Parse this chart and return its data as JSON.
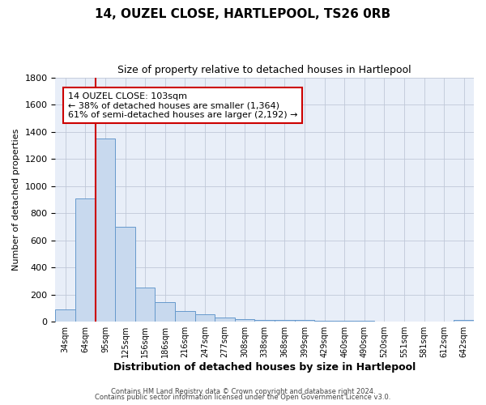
{
  "title": "14, OUZEL CLOSE, HARTLEPOOL, TS26 0RB",
  "subtitle": "Size of property relative to detached houses in Hartlepool",
  "xlabel": "Distribution of detached houses by size in Hartlepool",
  "ylabel": "Number of detached properties",
  "bar_color": "#c8d9ee",
  "bar_edge_color": "#6699cc",
  "background_color": "#ffffff",
  "plot_bg_color": "#e8eef8",
  "grid_color": "#c0c8d8",
  "annotation_box_edge_color": "#cc0000",
  "red_line_color": "#cc0000",
  "bins": [
    "34sqm",
    "64sqm",
    "95sqm",
    "125sqm",
    "156sqm",
    "186sqm",
    "216sqm",
    "247sqm",
    "277sqm",
    "308sqm",
    "338sqm",
    "368sqm",
    "399sqm",
    "429sqm",
    "460sqm",
    "490sqm",
    "520sqm",
    "551sqm",
    "581sqm",
    "612sqm",
    "642sqm"
  ],
  "values": [
    90,
    910,
    1350,
    700,
    250,
    145,
    80,
    55,
    30,
    20,
    15,
    10,
    10,
    5,
    5,
    5,
    0,
    0,
    0,
    0,
    10
  ],
  "red_line_bin_index": 2,
  "ylim": [
    0,
    1800
  ],
  "yticks": [
    0,
    200,
    400,
    600,
    800,
    1000,
    1200,
    1400,
    1600,
    1800
  ],
  "annotation_title": "14 OUZEL CLOSE: 103sqm",
  "annotation_line1": "← 38% of detached houses are smaller (1,364)",
  "annotation_line2": "61% of semi-detached houses are larger (2,192) →",
  "footer1": "Contains HM Land Registry data © Crown copyright and database right 2024.",
  "footer2": "Contains public sector information licensed under the Open Government Licence v3.0."
}
